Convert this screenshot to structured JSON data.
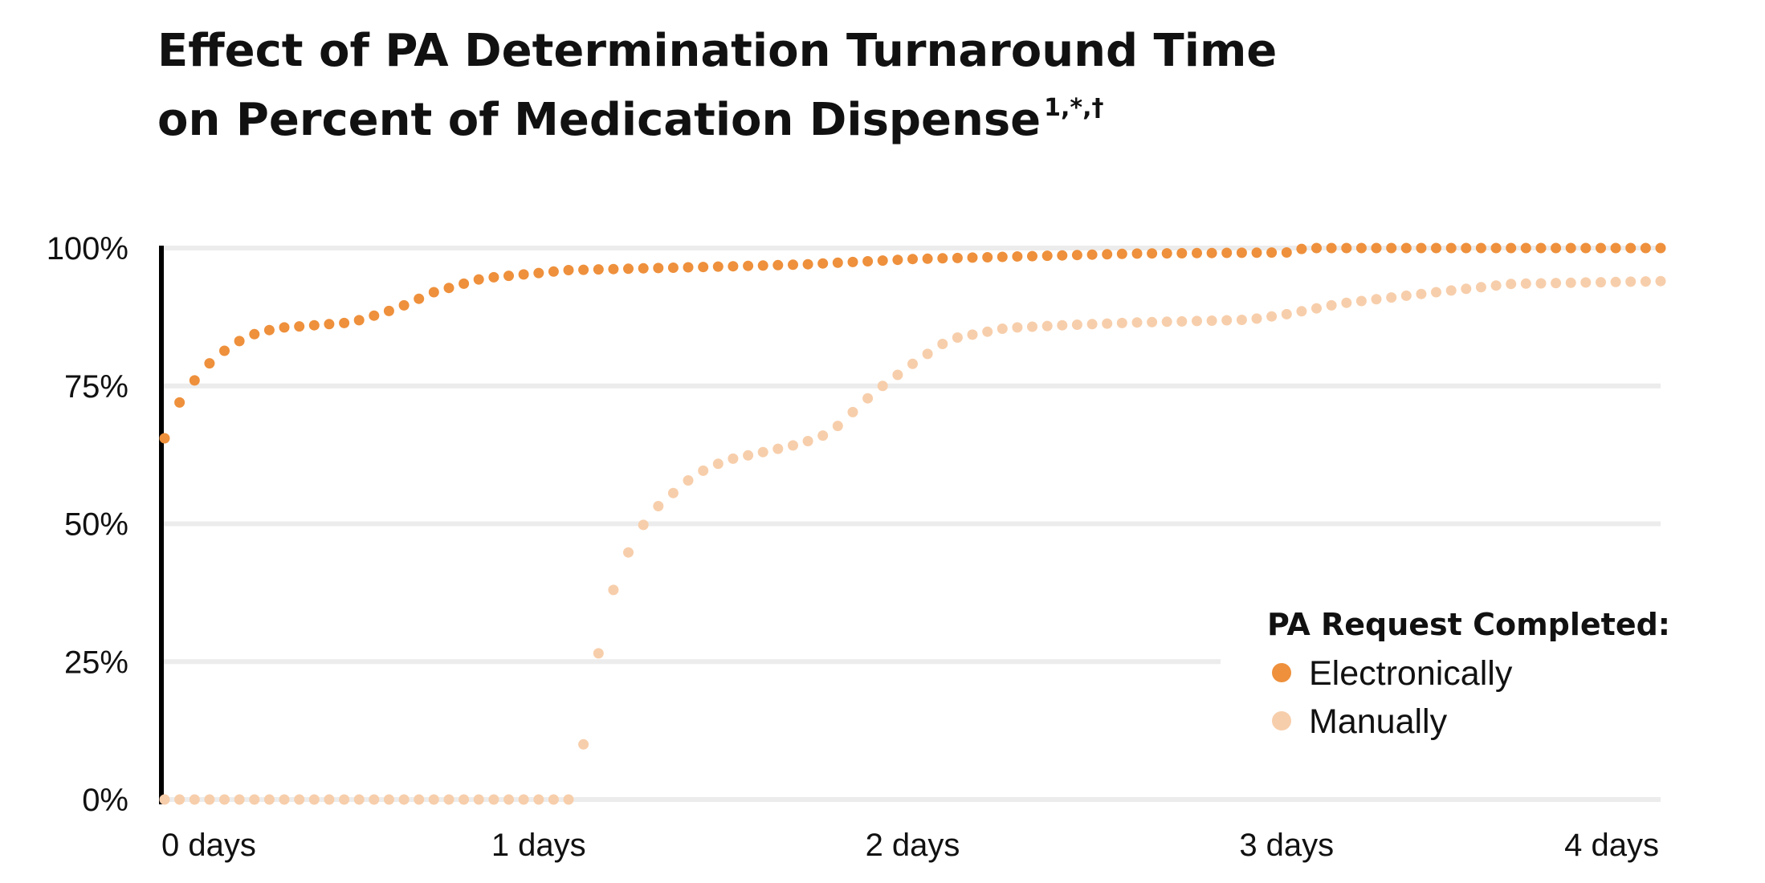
{
  "colors": {
    "electronic": "#ee903c",
    "manual": "#f7ceab",
    "grid": "#ececec",
    "axis": "#000000"
  },
  "chart_data": {
    "type": "scatter",
    "title": "Effect of PA Determination Turnaround Time",
    "title_line2": "on Percent of Medication Dispense",
    "title_superscript": "1,*,†",
    "xlabel": "",
    "ylabel": "",
    "xlim": [
      0,
      4
    ],
    "ylim": [
      0,
      100
    ],
    "x_ticks": [
      {
        "value": 0,
        "label": "0 days"
      },
      {
        "value": 1,
        "label": "1 days"
      },
      {
        "value": 2,
        "label": "2 days"
      },
      {
        "value": 3,
        "label": "3 days"
      },
      {
        "value": 4,
        "label": "4 days"
      }
    ],
    "y_ticks": [
      {
        "value": 0,
        "label": "0%"
      },
      {
        "value": 25,
        "label": "25%"
      },
      {
        "value": 50,
        "label": "50%"
      },
      {
        "value": 75,
        "label": "75%"
      },
      {
        "value": 100,
        "label": "100%"
      }
    ],
    "legend": {
      "title": "PA Request Completed:",
      "position": "lower-right",
      "entries": [
        "Electronically",
        "Manually"
      ]
    },
    "series": [
      {
        "name": "Electronically",
        "color_key": "electronic",
        "anchors": [
          [
            0,
            65.5
          ],
          [
            0.04,
            72
          ],
          [
            0.09,
            77
          ],
          [
            0.14,
            80.5
          ],
          [
            0.22,
            84
          ],
          [
            0.3,
            85.5
          ],
          [
            0.5,
            86.5
          ],
          [
            0.62,
            89
          ],
          [
            0.72,
            92
          ],
          [
            0.85,
            94.5
          ],
          [
            1.08,
            96
          ],
          [
            1.4,
            96.5
          ],
          [
            1.7,
            97
          ],
          [
            2.0,
            98
          ],
          [
            2.3,
            98.5
          ],
          [
            2.6,
            99
          ],
          [
            3.0,
            99.2
          ],
          [
            3.05,
            100
          ],
          [
            4.0,
            100
          ]
        ]
      },
      {
        "name": "Manually",
        "color_key": "manual",
        "anchors": [
          [
            0,
            0
          ],
          [
            1.08,
            0
          ],
          [
            1.12,
            10
          ],
          [
            1.16,
            26.5
          ],
          [
            1.2,
            38
          ],
          [
            1.25,
            46.5
          ],
          [
            1.3,
            52
          ],
          [
            1.35,
            55
          ],
          [
            1.42,
            59
          ],
          [
            1.5,
            61.5
          ],
          [
            1.6,
            63
          ],
          [
            1.7,
            64.5
          ],
          [
            1.78,
            66.5
          ],
          [
            1.82,
            69
          ],
          [
            1.9,
            74
          ],
          [
            2.0,
            79
          ],
          [
            2.1,
            83.5
          ],
          [
            2.25,
            85.5
          ],
          [
            2.4,
            86
          ],
          [
            2.6,
            86.5
          ],
          [
            2.9,
            87
          ],
          [
            3.0,
            88
          ],
          [
            3.15,
            90
          ],
          [
            3.4,
            92
          ],
          [
            3.6,
            93.5
          ],
          [
            4.0,
            94
          ]
        ]
      }
    ],
    "point_count": 101
  }
}
